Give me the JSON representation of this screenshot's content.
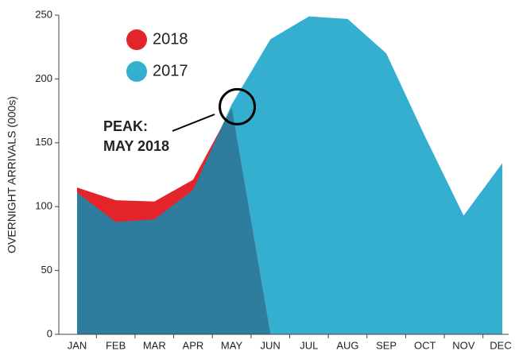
{
  "chart_data": {
    "type": "area",
    "y_label": "OVERNIGHT ARRIVALS (000s)",
    "categories": [
      "JAN",
      "FEB",
      "MAR",
      "APR",
      "MAY",
      "JUN",
      "JUL",
      "AUG",
      "SEP",
      "OCT",
      "NOV",
      "DEC"
    ],
    "series": [
      {
        "name": "2018",
        "color": "#e3242b",
        "values": [
          115,
          105,
          104,
          121,
          177,
          0,
          null,
          null,
          null,
          null,
          null,
          null
        ]
      },
      {
        "name": "2017",
        "color": "#35afd0",
        "values": [
          111,
          88,
          90,
          113,
          180,
          231,
          249,
          247,
          220,
          155,
          93,
          134
        ]
      }
    ],
    "overlap_color": "#2f7d9e",
    "annotation": [
      "PEAK:",
      "MAY 2018"
    ],
    "ylim": [
      0,
      250
    ],
    "yticks": [
      0,
      50,
      100,
      150,
      200,
      250
    ]
  }
}
